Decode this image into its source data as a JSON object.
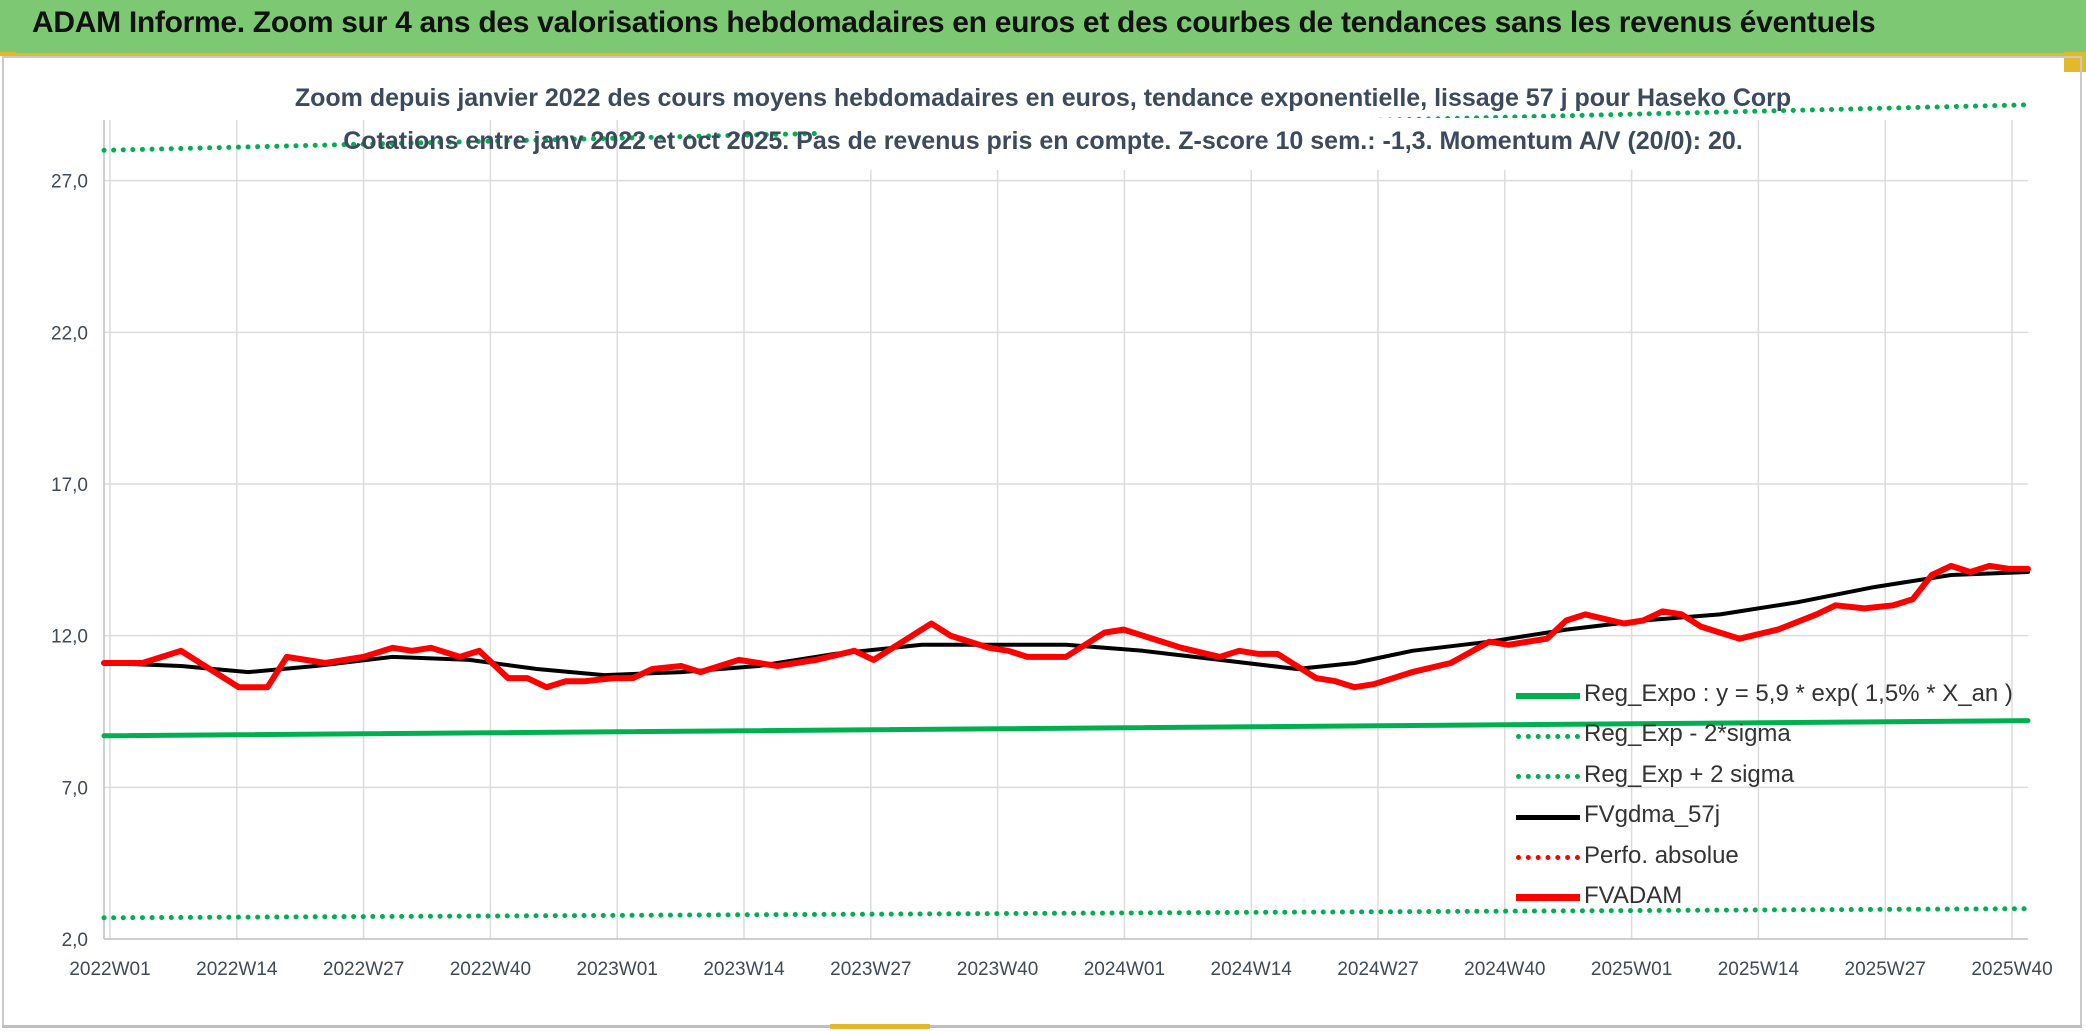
{
  "banner": {
    "title": "ADAM Informe. Zoom sur 4 ans des valorisations hebdomadaires en euros et des courbes de tendances sans les revenus éventuels"
  },
  "chart_data": {
    "type": "line",
    "title": "Zoom depuis janvier 2022 des cours moyens hebdomadaires en euros, tendance exponentielle, lissage 57 j pour Haseko Corp",
    "subtitle": "Cotations entre janv 2022 et oct 2025. Pas de revenus pris en compte. Z-score 10 sem.: -1,3. Momentum A/V (20/0): 20.",
    "xlabel": "",
    "ylabel": "",
    "ylim": [
      2.0,
      29.0
    ],
    "yticks": [
      2.0,
      7.0,
      12.0,
      17.0,
      22.0,
      27.0
    ],
    "ytick_labels": [
      "2,0",
      "7,0",
      "12,0",
      "17,0",
      "22,0",
      "27,0"
    ],
    "x_categories": [
      "2022W01",
      "2022W14",
      "2022W27",
      "2022W40",
      "2023W01",
      "2023W14",
      "2023W27",
      "2023W40",
      "2024W01",
      "2024W14",
      "2024W27",
      "2024W40",
      "2025W01",
      "2025W14",
      "2025W27",
      "2025W40"
    ],
    "x_range_weeks": [
      0,
      200
    ],
    "grid": true,
    "legend_position": "bottom-right",
    "series": [
      {
        "name": "Reg_Expo : y = 5,9 * exp( 1,5% *  X_an )",
        "color": "#00b050",
        "style": "solid",
        "x": [
          0,
          200
        ],
        "y": [
          8.7,
          9.2
        ]
      },
      {
        "name": "Reg_Exp - 2*sigma",
        "color": "#00b050",
        "style": "dotted",
        "x": [
          0,
          200
        ],
        "y": [
          2.7,
          3.0
        ]
      },
      {
        "name": "Reg_Exp + 2 sigma",
        "color": "#00b050",
        "style": "dotted",
        "x": [
          0,
          200
        ],
        "y": [
          28.0,
          29.5
        ]
      },
      {
        "name": "FVgdma_57j",
        "color": "#000000",
        "style": "solid",
        "x": [
          0,
          8,
          15,
          22,
          30,
          38,
          45,
          52,
          60,
          68,
          76,
          85,
          92,
          100,
          108,
          116,
          124,
          130,
          136,
          144,
          152,
          160,
          168,
          176,
          184,
          192,
          200
        ],
        "y": [
          11.1,
          11.0,
          10.8,
          11.0,
          11.3,
          11.2,
          10.9,
          10.7,
          10.8,
          11.0,
          11.4,
          11.7,
          11.7,
          11.7,
          11.5,
          11.2,
          10.9,
          11.1,
          11.5,
          11.8,
          12.2,
          12.5,
          12.7,
          13.1,
          13.6,
          14.0,
          14.1
        ]
      },
      {
        "name": "Perfo. absolue",
        "color": "#ff0000",
        "style": "dotted",
        "x": [],
        "y": []
      },
      {
        "name": "FVADAM",
        "color": "#ff0000",
        "style": "solid",
        "x": [
          0,
          4,
          8,
          10,
          14,
          17,
          19,
          23,
          27,
          30,
          32,
          34,
          37,
          39,
          42,
          44,
          46,
          48,
          50,
          53,
          55,
          57,
          60,
          62,
          66,
          70,
          74,
          78,
          80,
          84,
          86,
          88,
          90,
          92,
          94,
          96,
          100,
          104,
          106,
          108,
          110,
          112,
          116,
          118,
          120,
          122,
          124,
          126,
          128,
          130,
          132,
          136,
          140,
          144,
          146,
          150,
          152,
          154,
          158,
          160,
          162,
          164,
          166,
          170,
          174,
          178,
          180,
          183,
          186,
          188,
          190,
          192,
          194,
          196,
          198,
          200
        ],
        "y": [
          11.1,
          11.1,
          11.5,
          11.1,
          10.3,
          10.3,
          11.3,
          11.1,
          11.3,
          11.6,
          11.5,
          11.6,
          11.3,
          11.5,
          10.6,
          10.6,
          10.3,
          10.5,
          10.5,
          10.6,
          10.6,
          10.9,
          11.0,
          10.8,
          11.2,
          11.0,
          11.2,
          11.5,
          11.2,
          12.0,
          12.4,
          12.0,
          11.8,
          11.6,
          11.5,
          11.3,
          11.3,
          12.1,
          12.2,
          12.0,
          11.8,
          11.6,
          11.3,
          11.5,
          11.4,
          11.4,
          11.0,
          10.6,
          10.5,
          10.3,
          10.4,
          10.8,
          11.1,
          11.8,
          11.7,
          11.9,
          12.5,
          12.7,
          12.4,
          12.5,
          12.8,
          12.7,
          12.3,
          11.9,
          12.2,
          12.7,
          13.0,
          12.9,
          13.0,
          13.2,
          14.0,
          14.3,
          14.1,
          14.3,
          14.2,
          14.2
        ]
      }
    ]
  }
}
